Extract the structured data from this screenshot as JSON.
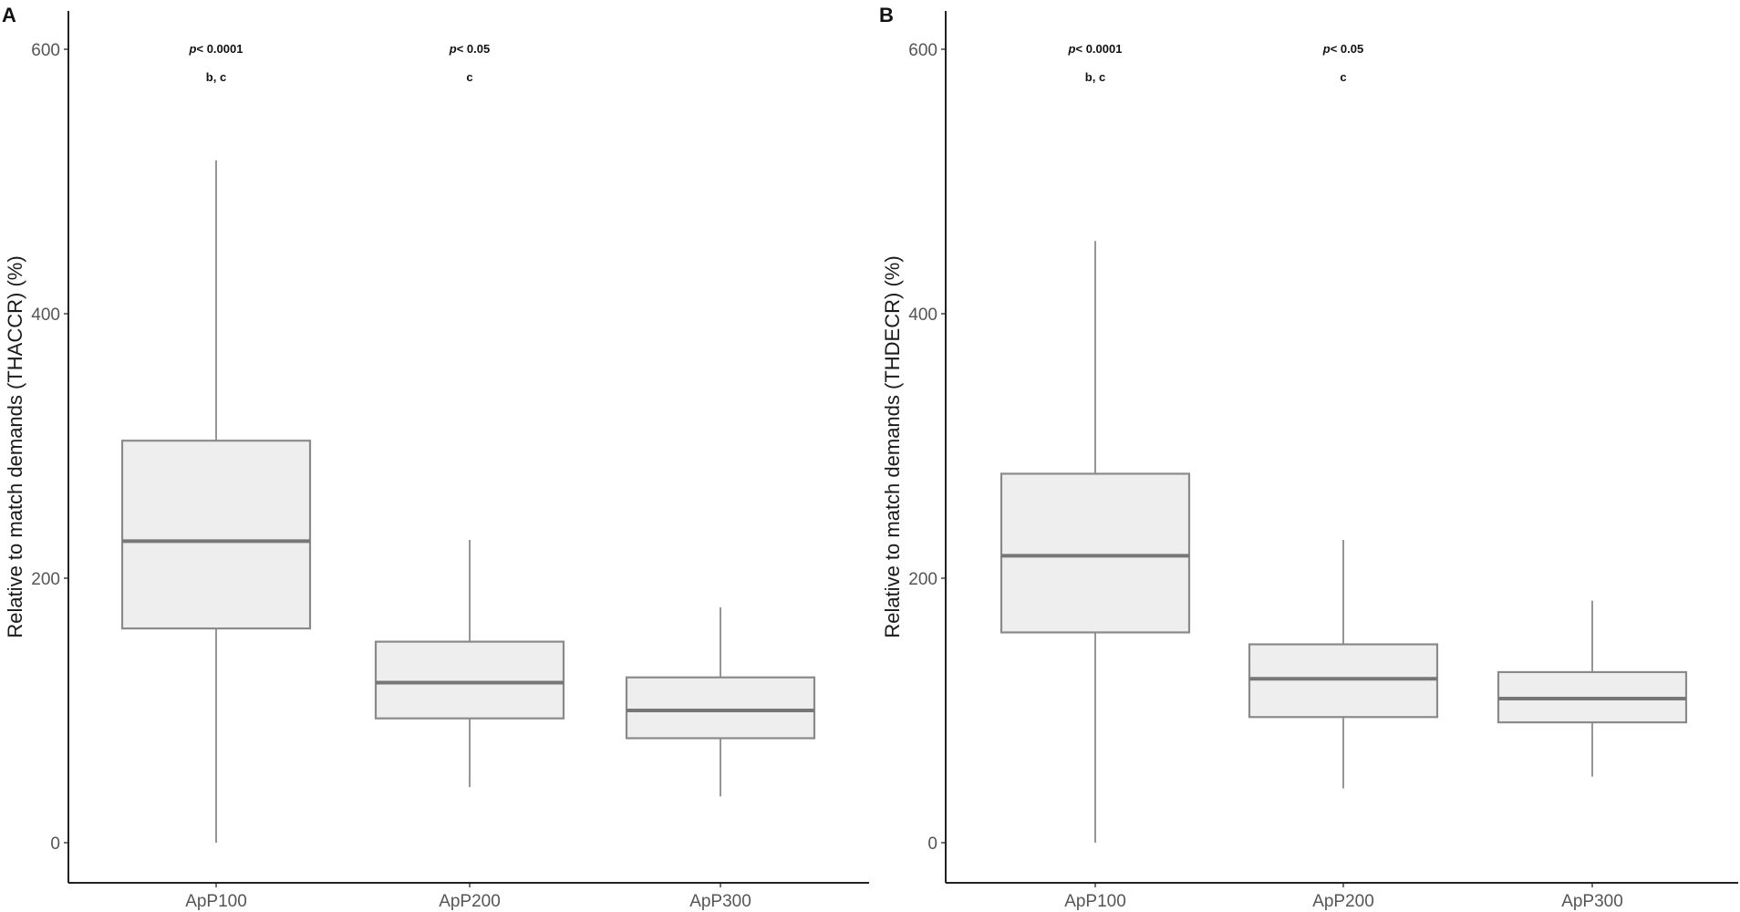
{
  "chart_data": [
    {
      "type": "box",
      "panel": "A",
      "ylabel": "Relative to match demands (THACCR) (%)",
      "xlabel": "",
      "ylim": [
        -50,
        625
      ],
      "yticks": [
        0,
        200,
        400,
        600
      ],
      "ytick_labels": [
        "0",
        "200",
        "400",
        "600"
      ],
      "categories": [
        "ApP100",
        "ApP200",
        "ApP300"
      ],
      "boxes": [
        {
          "category": "ApP100",
          "whisker_low": 0,
          "q1": 162,
          "median": 228,
          "q3": 304,
          "whisker_high": 516
        },
        {
          "category": "ApP200",
          "whisker_low": 42,
          "q1": 94,
          "median": 121,
          "q3": 152,
          "whisker_high": 229
        },
        {
          "category": "ApP300",
          "whisker_low": 35,
          "q1": 79,
          "median": 100,
          "q3": 125,
          "whisker_high": 178
        }
      ],
      "annotations": [
        {
          "category": "ApP100",
          "p_prefix": "p",
          "p_text": "< 0.0001",
          "letters": "b, c"
        },
        {
          "category": "ApP200",
          "p_prefix": "p",
          "p_text": "< 0.05",
          "letters": "c"
        }
      ]
    },
    {
      "type": "box",
      "panel": "B",
      "ylabel": "Relative to match demands (THDECR) (%)",
      "xlabel": "",
      "ylim": [
        -50,
        625
      ],
      "yticks": [
        0,
        200,
        400,
        600
      ],
      "ytick_labels": [
        "0",
        "200",
        "400",
        "600"
      ],
      "categories": [
        "ApP100",
        "ApP200",
        "ApP300"
      ],
      "boxes": [
        {
          "category": "ApP100",
          "whisker_low": 0,
          "q1": 159,
          "median": 217,
          "q3": 279,
          "whisker_high": 455
        },
        {
          "category": "ApP200",
          "whisker_low": 41,
          "q1": 95,
          "median": 124,
          "q3": 150,
          "whisker_high": 229
        },
        {
          "category": "ApP300",
          "whisker_low": 50,
          "q1": 91,
          "median": 109,
          "q3": 129,
          "whisker_high": 183
        }
      ],
      "annotations": [
        {
          "category": "ApP100",
          "p_prefix": "p",
          "p_text": "< 0.0001",
          "letters": "b, c"
        },
        {
          "category": "ApP200",
          "p_prefix": "p",
          "p_text": "< 0.05",
          "letters": "c"
        }
      ]
    }
  ],
  "style": {
    "box_fill": "#eeeeee",
    "box_stroke": "#8a8a8a",
    "median_color": "#777777"
  }
}
